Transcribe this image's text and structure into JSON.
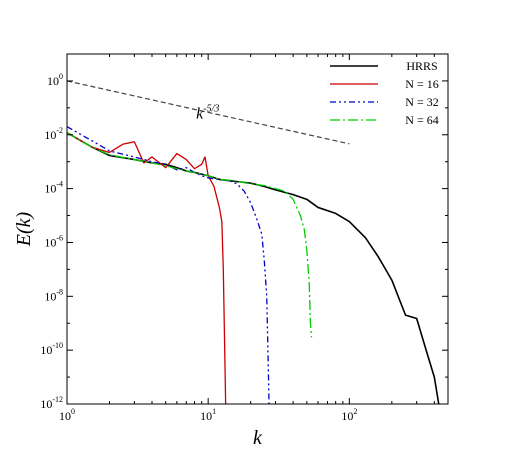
{
  "chart_data": {
    "type": "line",
    "x_scale": "log",
    "y_scale": "log",
    "xlim": [
      1,
      500
    ],
    "ylim": [
      1e-12,
      10
    ],
    "xlabel": "k",
    "ylabel": "E(k)",
    "grid": false,
    "legend_position": "top-right",
    "x_ticks": [
      {
        "value": 1,
        "base": "10",
        "exp": "0"
      },
      {
        "value": 10,
        "base": "10",
        "exp": "1"
      },
      {
        "value": 100,
        "base": "10",
        "exp": "2"
      }
    ],
    "y_ticks": [
      {
        "value": 1,
        "base": "10",
        "exp": "0"
      },
      {
        "value": 0.01,
        "base": "10",
        "exp": "-2"
      },
      {
        "value": 0.0001,
        "base": "10",
        "exp": "-4"
      },
      {
        "value": 1e-06,
        "base": "10",
        "exp": "-6"
      },
      {
        "value": 1e-08,
        "base": "10",
        "exp": "-8"
      },
      {
        "value": 1e-10,
        "base": "10",
        "exp": "-10"
      },
      {
        "value": 1e-12,
        "base": "10",
        "exp": "-12"
      }
    ],
    "annotation": {
      "base": "k",
      "exp": "-5/3",
      "reference_line": {
        "x": [
          1,
          100
        ],
        "y": [
          1.0,
          0.0046
        ]
      },
      "label_at": {
        "x": 10,
        "y": 0.04
      },
      "color": "#444444"
    },
    "series": [
      {
        "name": "HRRS",
        "color": "#000000",
        "dash": "solid",
        "points": [
          [
            1,
            0.012
          ],
          [
            1.5,
            0.0035
          ],
          [
            2,
            0.0017
          ],
          [
            3,
            0.0012
          ],
          [
            4,
            0.0009
          ],
          [
            5,
            0.0008
          ],
          [
            6,
            0.0006
          ],
          [
            7,
            0.00045
          ],
          [
            8,
            0.0004
          ],
          [
            10,
            0.0003
          ],
          [
            12,
            0.00022
          ],
          [
            15,
            0.00019
          ],
          [
            20,
            0.00016
          ],
          [
            25,
            0.00012
          ],
          [
            30,
            9e-05
          ],
          [
            40,
            6e-05
          ],
          [
            50,
            4e-05
          ],
          [
            60,
            2e-05
          ],
          [
            80,
            1.2e-05
          ],
          [
            100,
            6e-06
          ],
          [
            130,
            1.5e-06
          ],
          [
            160,
            3e-07
          ],
          [
            200,
            4e-08
          ],
          [
            250,
            2e-09
          ],
          [
            300,
            1.5e-09
          ],
          [
            350,
            1e-10
          ],
          [
            400,
            1e-11
          ],
          [
            430,
            1e-12
          ]
        ]
      },
      {
        "name": "N = 16",
        "color": "#cc0000",
        "dash": "solid",
        "points": [
          [
            1,
            0.012
          ],
          [
            1.5,
            0.0035
          ],
          [
            2,
            0.0022
          ],
          [
            2.5,
            0.0045
          ],
          [
            3,
            0.0055
          ],
          [
            3.5,
            0.0009
          ],
          [
            4,
            0.0015
          ],
          [
            5,
            0.0006
          ],
          [
            6,
            0.002
          ],
          [
            7,
            0.0012
          ],
          [
            8,
            0.00055
          ],
          [
            9,
            0.0008
          ],
          [
            9.5,
            0.0015
          ],
          [
            10,
            0.0003
          ],
          [
            11,
            0.00012
          ],
          [
            12,
            2e-05
          ],
          [
            12.5,
            6e-06
          ],
          [
            12.8,
            1e-07
          ],
          [
            13,
            1e-09
          ],
          [
            13.3,
            1e-12
          ]
        ]
      },
      {
        "name": "N = 32",
        "color": "#0000cc",
        "dash": "6,3,2,3,2,3",
        "points": [
          [
            1,
            0.02
          ],
          [
            1.5,
            0.006
          ],
          [
            2,
            0.0025
          ],
          [
            3,
            0.0015
          ],
          [
            4,
            0.001
          ],
          [
            5,
            0.0008
          ],
          [
            6,
            0.0005
          ],
          [
            7,
            0.0006
          ],
          [
            8,
            0.0004
          ],
          [
            9,
            0.0003
          ],
          [
            10,
            0.00025
          ],
          [
            12,
            0.00022
          ],
          [
            14,
            0.0002
          ],
          [
            16,
            0.00015
          ],
          [
            18,
            8e-05
          ],
          [
            20,
            3e-05
          ],
          [
            22,
            8e-06
          ],
          [
            24,
            2e-06
          ],
          [
            25,
            2e-07
          ],
          [
            26,
            1e-08
          ],
          [
            26.5,
            1e-10
          ],
          [
            27,
            1e-12
          ]
        ]
      },
      {
        "name": "N = 64",
        "color": "#00cc00",
        "dash": "10,3,2,3",
        "points": [
          [
            1,
            0.012
          ],
          [
            1.5,
            0.0035
          ],
          [
            2,
            0.0018
          ],
          [
            3,
            0.0012
          ],
          [
            4,
            0.0009
          ],
          [
            5,
            0.0007
          ],
          [
            6,
            0.00055
          ],
          [
            7,
            0.00045
          ],
          [
            8,
            0.0004
          ],
          [
            10,
            0.0003
          ],
          [
            12,
            0.00022
          ],
          [
            15,
            0.0002
          ],
          [
            20,
            0.00015
          ],
          [
            25,
            0.00013
          ],
          [
            30,
            0.0001
          ],
          [
            35,
            8e-05
          ],
          [
            40,
            4e-05
          ],
          [
            45,
            1e-05
          ],
          [
            48,
            3e-06
          ],
          [
            50,
            5e-07
          ],
          [
            52,
            3e-08
          ],
          [
            53,
            1e-09
          ],
          [
            54,
            3e-10
          ]
        ]
      }
    ]
  }
}
